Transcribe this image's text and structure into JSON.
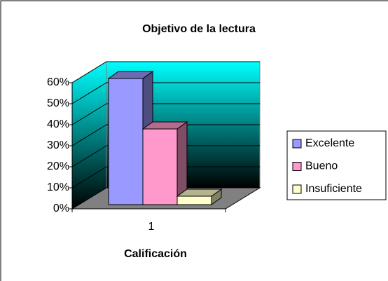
{
  "chart_data": {
    "type": "bar3d",
    "title": "Objetivo de la lectura",
    "x_label": "Calificación",
    "categories": [
      "1"
    ],
    "series": [
      {
        "name": "Excelente",
        "color": "#9999ff",
        "values": [
          60
        ]
      },
      {
        "name": "Bueno",
        "color": "#ff99cc",
        "values": [
          36
        ]
      },
      {
        "name": "Insuficiente",
        "color": "#ffffcc",
        "values": [
          4
        ]
      }
    ],
    "ylim": [
      0,
      60
    ],
    "yticks": [
      {
        "value": 0,
        "label": "0%"
      },
      {
        "value": 10,
        "label": "10%"
      },
      {
        "value": 20,
        "label": "20%"
      },
      {
        "value": 30,
        "label": "30%"
      },
      {
        "value": 40,
        "label": "40%"
      },
      {
        "value": 50,
        "label": "50%"
      },
      {
        "value": 60,
        "label": "60%"
      }
    ],
    "grid": true,
    "legend": "right"
  }
}
